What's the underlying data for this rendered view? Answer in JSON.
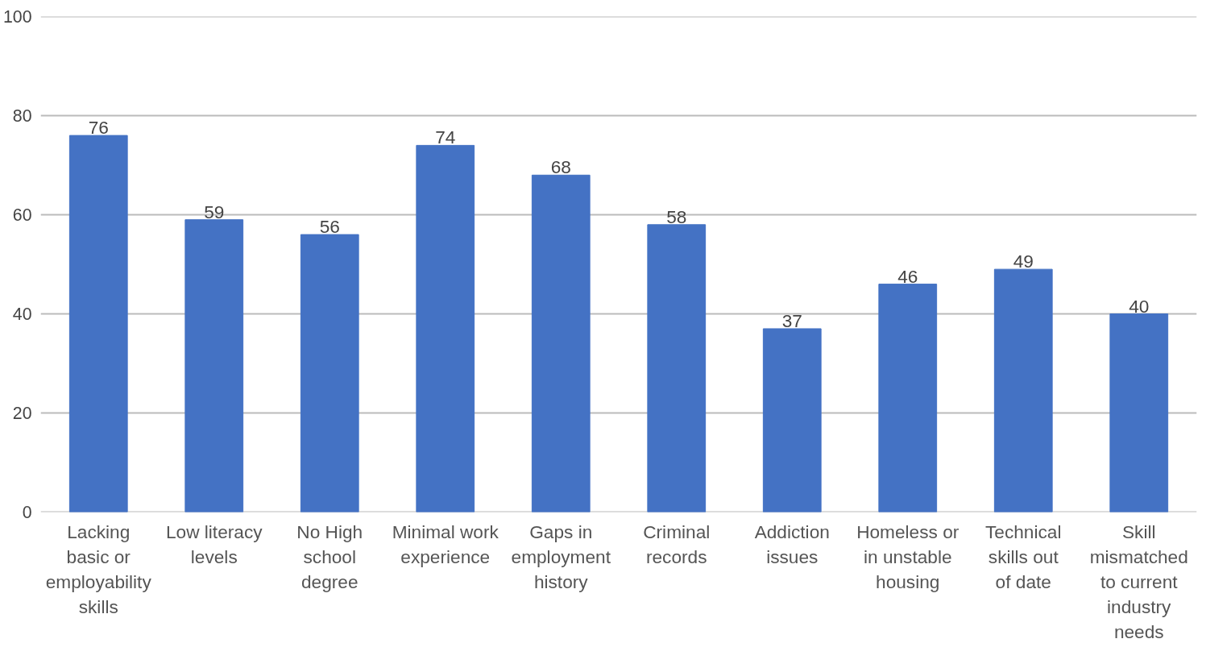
{
  "chart_data": {
    "type": "bar",
    "categories": [
      "Lacking basic or employability skills",
      "Low literacy levels",
      "No High school degree",
      "Minimal work experience",
      "Gaps in employment history",
      "Criminal records",
      "Addiction issues",
      "Homeless or in unstable housing",
      "Technical skills out of date",
      "Skill mismatched to current industry needs"
    ],
    "values": [
      76,
      59,
      56,
      74,
      68,
      58,
      37,
      46,
      49,
      40
    ],
    "color": "#4472c4",
    "ylim": [
      0,
      100
    ],
    "yticks": [
      0,
      20,
      40,
      60,
      80,
      100
    ],
    "grid": "y",
    "data_labels": true
  }
}
